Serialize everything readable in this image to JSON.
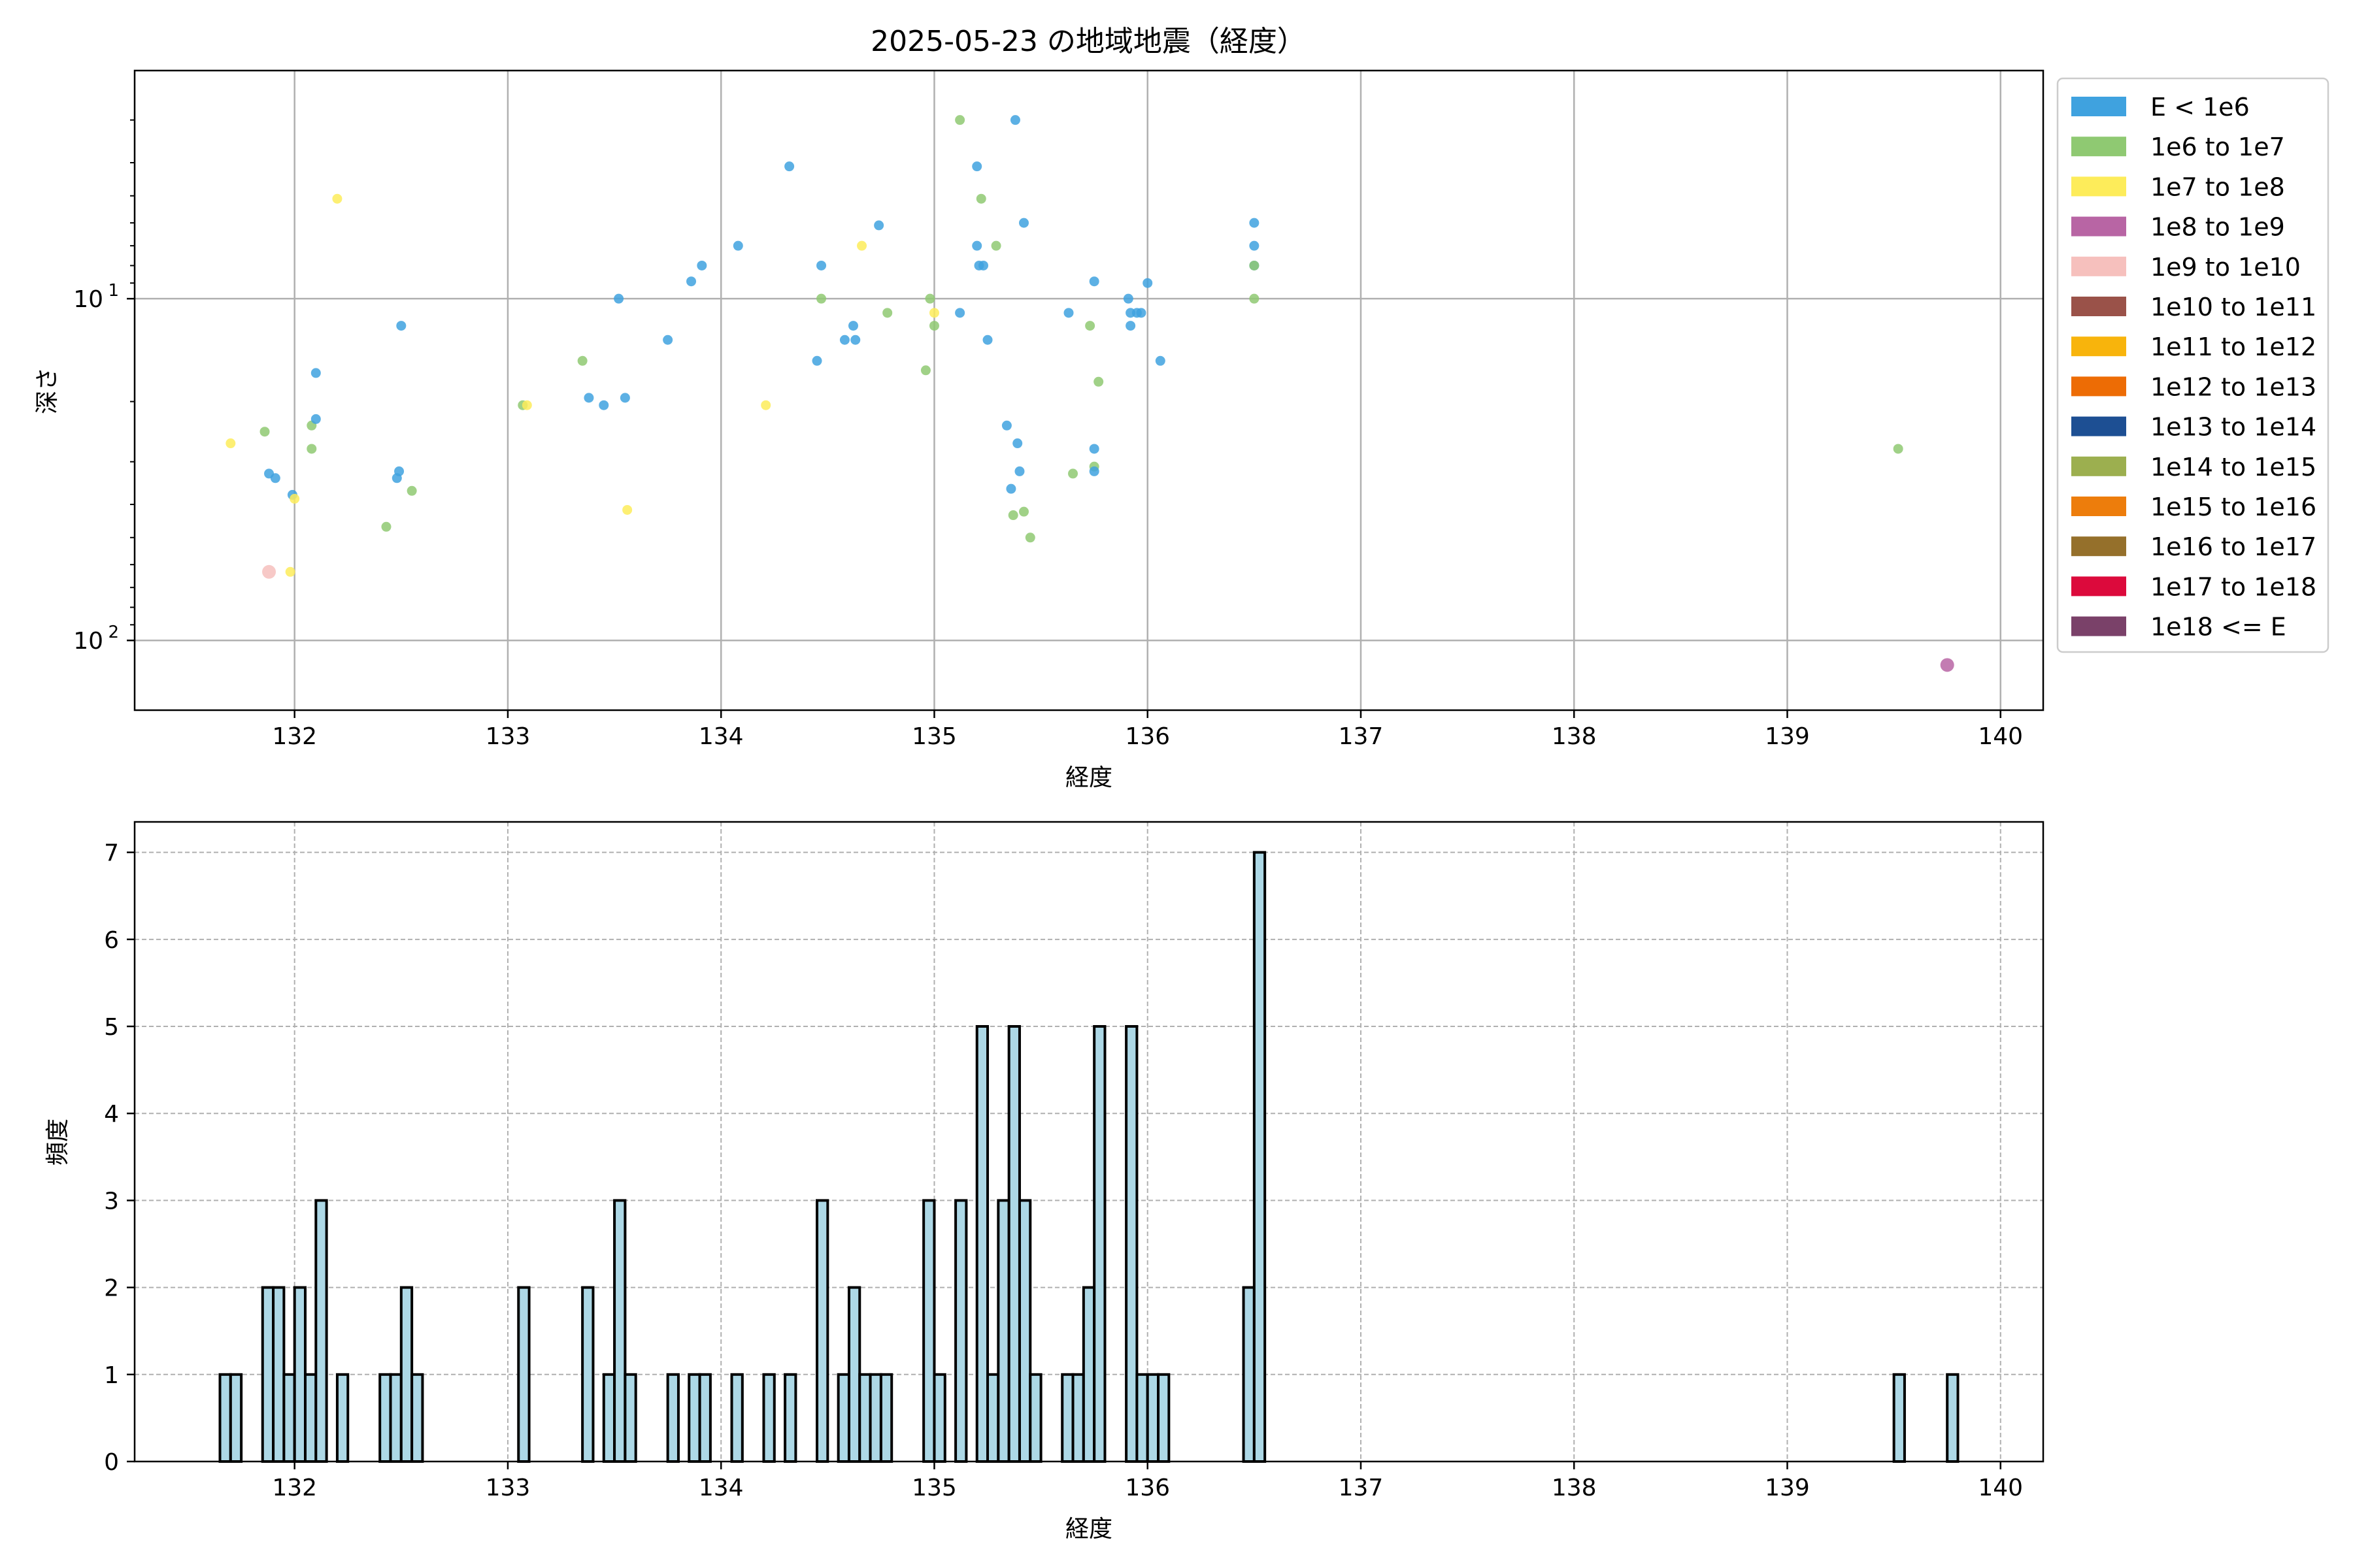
{
  "chart_data": [
    {
      "type": "scatter",
      "title": "2025-05-23 の地域地震（経度）",
      "xlabel": "経度",
      "ylabel": "深さ",
      "xlim": [
        131.25,
        140.2
      ],
      "ylim_log_inverted": [
        160,
        2.15
      ],
      "y_scale": "log",
      "y_inverted": true,
      "xticks": [
        "132",
        "133",
        "134",
        "135",
        "136",
        "137",
        "138",
        "139",
        "140"
      ],
      "ytick_labels": [
        {
          "value": 10,
          "base": "10",
          "exp": "1"
        },
        {
          "value": 100,
          "base": "10",
          "exp": "2"
        }
      ],
      "grid": true,
      "legend_position": "outside-right",
      "legend": [
        {
          "label": "E < 1e6",
          "color": "#3fa2df"
        },
        {
          "label": "1e6 to 1e7",
          "color": "#8fc972"
        },
        {
          "label": "1e7 to 1e8",
          "color": "#fdec5a"
        },
        {
          "label": "1e8 to 1e9",
          "color": "#b865a4"
        },
        {
          "label": "1e9 to 1e10",
          "color": "#f6c0bd"
        },
        {
          "label": "1e10 to 1e11",
          "color": "#9a5249"
        },
        {
          "label": "1e11 to 1e12",
          "color": "#f8b40c"
        },
        {
          "label": "1e12 to 1e13",
          "color": "#ed6c05"
        },
        {
          "label": "1e13 to 1e14",
          "color": "#1d4f93"
        },
        {
          "label": "1e14 to 1e15",
          "color": "#9caf4f"
        },
        {
          "label": "1e15 to 1e16",
          "color": "#ed7d0c"
        },
        {
          "label": "1e16 to 1e17",
          "color": "#95702b"
        },
        {
          "label": "1e17 to 1e18",
          "color": "#dc0a3c"
        },
        {
          "label": "1e18 <= E",
          "color": "#7a4169"
        }
      ],
      "points": [
        {
          "x": 131.7,
          "y": 26.5,
          "c": 2
        },
        {
          "x": 131.86,
          "y": 24.5,
          "c": 1
        },
        {
          "x": 131.88,
          "y": 32.5,
          "c": 0
        },
        {
          "x": 131.91,
          "y": 33.5,
          "c": 0
        },
        {
          "x": 131.88,
          "y": 63,
          "c": 4
        },
        {
          "x": 131.98,
          "y": 63,
          "c": 2
        },
        {
          "x": 131.99,
          "y": 37.5,
          "c": 0
        },
        {
          "x": 132.0,
          "y": 38.5,
          "c": 2
        },
        {
          "x": 132.08,
          "y": 23.5,
          "c": 1
        },
        {
          "x": 132.08,
          "y": 27.5,
          "c": 1
        },
        {
          "x": 132.1,
          "y": 22.5,
          "c": 0
        },
        {
          "x": 132.1,
          "y": 16.5,
          "c": 0
        },
        {
          "x": 132.2,
          "y": 5.1,
          "c": 2
        },
        {
          "x": 132.43,
          "y": 46.5,
          "c": 1
        },
        {
          "x": 132.48,
          "y": 33.5,
          "c": 0
        },
        {
          "x": 132.49,
          "y": 32.0,
          "c": 0
        },
        {
          "x": 132.5,
          "y": 12.0,
          "c": 0
        },
        {
          "x": 132.55,
          "y": 36.5,
          "c": 1
        },
        {
          "x": 133.07,
          "y": 20.5,
          "c": 1
        },
        {
          "x": 133.09,
          "y": 20.5,
          "c": 2
        },
        {
          "x": 133.35,
          "y": 15.2,
          "c": 1
        },
        {
          "x": 133.38,
          "y": 19.5,
          "c": 0
        },
        {
          "x": 133.45,
          "y": 20.5,
          "c": 0
        },
        {
          "x": 133.52,
          "y": 10.0,
          "c": 0
        },
        {
          "x": 133.55,
          "y": 19.5,
          "c": 0
        },
        {
          "x": 133.56,
          "y": 41.5,
          "c": 2
        },
        {
          "x": 133.75,
          "y": 13.2,
          "c": 0
        },
        {
          "x": 133.86,
          "y": 8.9,
          "c": 0
        },
        {
          "x": 133.91,
          "y": 8.0,
          "c": 0
        },
        {
          "x": 134.08,
          "y": 7.0,
          "c": 0
        },
        {
          "x": 134.21,
          "y": 20.5,
          "c": 2
        },
        {
          "x": 134.32,
          "y": 4.1,
          "c": 0
        },
        {
          "x": 134.45,
          "y": 15.2,
          "c": 0
        },
        {
          "x": 134.47,
          "y": 10.0,
          "c": 1
        },
        {
          "x": 134.47,
          "y": 8.0,
          "c": 0
        },
        {
          "x": 134.58,
          "y": 13.2,
          "c": 0
        },
        {
          "x": 134.62,
          "y": 12.0,
          "c": 0
        },
        {
          "x": 134.63,
          "y": 13.2,
          "c": 0
        },
        {
          "x": 134.66,
          "y": 7.0,
          "c": 2
        },
        {
          "x": 134.74,
          "y": 6.1,
          "c": 0
        },
        {
          "x": 134.78,
          "y": 11.0,
          "c": 1
        },
        {
          "x": 134.96,
          "y": 16.2,
          "c": 1
        },
        {
          "x": 134.98,
          "y": 10.0,
          "c": 1
        },
        {
          "x": 135.0,
          "y": 11.0,
          "c": 2
        },
        {
          "x": 135.0,
          "y": 12.0,
          "c": 1
        },
        {
          "x": 135.12,
          "y": 3.0,
          "c": 1
        },
        {
          "x": 135.12,
          "y": 11.0,
          "c": 0
        },
        {
          "x": 135.2,
          "y": 4.1,
          "c": 0
        },
        {
          "x": 135.2,
          "y": 7.0,
          "c": 0
        },
        {
          "x": 135.21,
          "y": 8.0,
          "c": 0
        },
        {
          "x": 135.22,
          "y": 5.1,
          "c": 1
        },
        {
          "x": 135.23,
          "y": 8.0,
          "c": 0
        },
        {
          "x": 135.25,
          "y": 13.2,
          "c": 0
        },
        {
          "x": 135.29,
          "y": 7.0,
          "c": 1
        },
        {
          "x": 135.34,
          "y": 23.5,
          "c": 0
        },
        {
          "x": 135.36,
          "y": 36.0,
          "c": 0
        },
        {
          "x": 135.37,
          "y": 43.0,
          "c": 1
        },
        {
          "x": 135.38,
          "y": 3.0,
          "c": 0
        },
        {
          "x": 135.39,
          "y": 26.5,
          "c": 0
        },
        {
          "x": 135.4,
          "y": 32.0,
          "c": 0
        },
        {
          "x": 135.42,
          "y": 6.0,
          "c": 0
        },
        {
          "x": 135.42,
          "y": 42.0,
          "c": 1
        },
        {
          "x": 135.45,
          "y": 50.0,
          "c": 1
        },
        {
          "x": 135.63,
          "y": 11.0,
          "c": 0
        },
        {
          "x": 135.65,
          "y": 32.5,
          "c": 1
        },
        {
          "x": 135.73,
          "y": 12.0,
          "c": 1
        },
        {
          "x": 135.75,
          "y": 8.9,
          "c": 0
        },
        {
          "x": 135.75,
          "y": 27.5,
          "c": 0
        },
        {
          "x": 135.75,
          "y": 31.0,
          "c": 1
        },
        {
          "x": 135.75,
          "y": 32.0,
          "c": 0
        },
        {
          "x": 135.77,
          "y": 17.5,
          "c": 1
        },
        {
          "x": 135.91,
          "y": 10.0,
          "c": 0
        },
        {
          "x": 135.92,
          "y": 11.0,
          "c": 0
        },
        {
          "x": 135.92,
          "y": 12.0,
          "c": 0
        },
        {
          "x": 135.95,
          "y": 11.0,
          "c": 0
        },
        {
          "x": 135.97,
          "y": 11.0,
          "c": 0
        },
        {
          "x": 136.0,
          "y": 9.0,
          "c": 0
        },
        {
          "x": 136.06,
          "y": 15.2,
          "c": 0
        },
        {
          "x": 136.5,
          "y": 6.0,
          "c": 0
        },
        {
          "x": 136.5,
          "y": 7.0,
          "c": 0
        },
        {
          "x": 136.5,
          "y": 8.0,
          "c": 0
        },
        {
          "x": 136.5,
          "y": 8.0,
          "c": 1
        },
        {
          "x": 136.5,
          "y": 10.0,
          "c": 1
        },
        {
          "x": 139.52,
          "y": 27.5,
          "c": 1
        },
        {
          "x": 139.75,
          "y": 118,
          "c": 3
        }
      ]
    },
    {
      "type": "bar",
      "title": "",
      "xlabel": "経度",
      "ylabel": "頻度",
      "xlim": [
        131.25,
        140.2
      ],
      "ylim": [
        0,
        7.35
      ],
      "xticks": [
        "132",
        "133",
        "134",
        "135",
        "136",
        "137",
        "138",
        "139",
        "140"
      ],
      "yticks": [
        "0",
        "1",
        "2",
        "3",
        "4",
        "5",
        "6",
        "7"
      ],
      "grid": true,
      "bar_color": "#add8e6",
      "bar_edge_color": "#000000",
      "bin_width": 0.05,
      "bins": [
        {
          "x": 131.65,
          "v": 1
        },
        {
          "x": 131.7,
          "v": 1
        },
        {
          "x": 131.85,
          "v": 2
        },
        {
          "x": 131.9,
          "v": 2
        },
        {
          "x": 131.95,
          "v": 1
        },
        {
          "x": 132.0,
          "v": 2
        },
        {
          "x": 132.05,
          "v": 1
        },
        {
          "x": 132.1,
          "v": 3
        },
        {
          "x": 132.2,
          "v": 1
        },
        {
          "x": 132.4,
          "v": 1
        },
        {
          "x": 132.45,
          "v": 1
        },
        {
          "x": 132.5,
          "v": 2
        },
        {
          "x": 132.55,
          "v": 1
        },
        {
          "x": 133.05,
          "v": 2
        },
        {
          "x": 133.35,
          "v": 2
        },
        {
          "x": 133.45,
          "v": 1
        },
        {
          "x": 133.5,
          "v": 3
        },
        {
          "x": 133.55,
          "v": 1
        },
        {
          "x": 133.75,
          "v": 1
        },
        {
          "x": 133.85,
          "v": 1
        },
        {
          "x": 133.9,
          "v": 1
        },
        {
          "x": 134.05,
          "v": 1
        },
        {
          "x": 134.2,
          "v": 1
        },
        {
          "x": 134.3,
          "v": 1
        },
        {
          "x": 134.45,
          "v": 3
        },
        {
          "x": 134.55,
          "v": 1
        },
        {
          "x": 134.6,
          "v": 2
        },
        {
          "x": 134.65,
          "v": 1
        },
        {
          "x": 134.7,
          "v": 1
        },
        {
          "x": 134.75,
          "v": 1
        },
        {
          "x": 134.95,
          "v": 3
        },
        {
          "x": 135.0,
          "v": 1
        },
        {
          "x": 135.1,
          "v": 3
        },
        {
          "x": 135.2,
          "v": 5
        },
        {
          "x": 135.25,
          "v": 1
        },
        {
          "x": 135.3,
          "v": 3
        },
        {
          "x": 135.35,
          "v": 5
        },
        {
          "x": 135.4,
          "v": 3
        },
        {
          "x": 135.45,
          "v": 1
        },
        {
          "x": 135.6,
          "v": 1
        },
        {
          "x": 135.65,
          "v": 1
        },
        {
          "x": 135.7,
          "v": 2
        },
        {
          "x": 135.75,
          "v": 5
        },
        {
          "x": 135.9,
          "v": 5
        },
        {
          "x": 135.95,
          "v": 1
        },
        {
          "x": 136.0,
          "v": 1
        },
        {
          "x": 136.05,
          "v": 1
        },
        {
          "x": 136.45,
          "v": 2
        },
        {
          "x": 136.5,
          "v": 7
        },
        {
          "x": 139.5,
          "v": 1
        },
        {
          "x": 139.75,
          "v": 1
        }
      ]
    }
  ]
}
